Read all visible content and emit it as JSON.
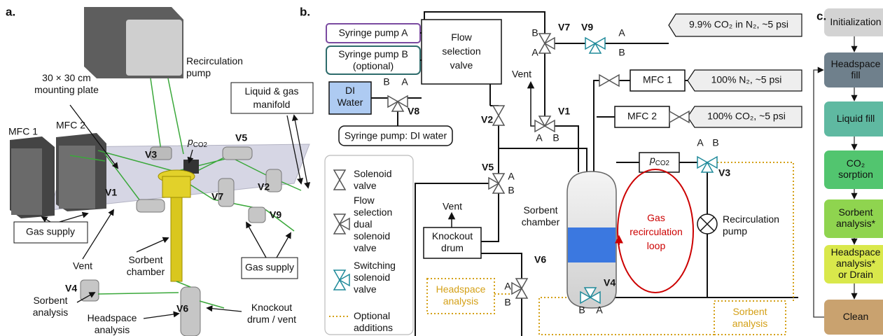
{
  "panel_a": {
    "label": "a.",
    "recirculation_pump": [
      "Recirculation",
      "pump"
    ],
    "mounting_plate": [
      "30 × 30 cm",
      "mounting plate"
    ],
    "manifold": [
      "Liquid & gas",
      "manifold"
    ],
    "mfc1": "MFC 1",
    "mfc2": "MFC 2",
    "pco2": {
      "main": "p",
      "sub": "CO2"
    },
    "valves": [
      "V3",
      "V5",
      "V1",
      "V7",
      "V2",
      "V9",
      "V4",
      "V6"
    ],
    "gas_supply_left": "Gas supply",
    "gas_supply_right": "Gas supply",
    "vent": "Vent",
    "sorbent_chamber": [
      "Sorbent",
      "chamber"
    ],
    "sorbent_analysis": [
      "Sorbent",
      "analysis"
    ],
    "headspace_analysis": [
      "Headspace",
      "analysis"
    ],
    "knockout": [
      "Knockout",
      "drum / vent"
    ]
  },
  "panel_b": {
    "label": "b.",
    "syringe_a": "Syringe pump A",
    "syringe_b": [
      "Syringe pump B",
      "(optional)"
    ],
    "flow_valve": [
      "Flow",
      "selection",
      "valve"
    ],
    "di_water": [
      "DI",
      "Water"
    ],
    "syringe_di": "Syringe pump: DI water",
    "valves": [
      {
        "name": "V8",
        "ports": [
          "B",
          "A"
        ]
      },
      {
        "name": "V7",
        "ports": [
          "B",
          "A"
        ]
      },
      {
        "name": "V9",
        "ports": [
          "A",
          "B"
        ]
      },
      {
        "name": "V1",
        "ports": [
          "A",
          "B"
        ]
      },
      {
        "name": "V2",
        "ports": []
      },
      {
        "name": "V5",
        "ports": [
          "A",
          "B"
        ]
      },
      {
        "name": "V6",
        "ports": [
          "A",
          "B"
        ]
      },
      {
        "name": "V4",
        "ports": [
          "B",
          "A"
        ]
      },
      {
        "name": "V3",
        "ports": [
          "A",
          "B"
        ]
      }
    ],
    "sources": [
      "9.9% CO₂ in N₂, ~5 psi",
      "100% N₂, ~5 psi",
      "100% CO₂, ~5 psi"
    ],
    "mfc1": "MFC 1",
    "mfc2": "MFC 2",
    "vent_top": "Vent",
    "vent_mid": "Vent",
    "pco2": {
      "main": "p",
      "sub": "CO2"
    },
    "sorbent_chamber": [
      "Sorbent",
      "chamber"
    ],
    "loop": [
      "Gas",
      "recirculation",
      "loop"
    ],
    "pump": [
      "Recirculation",
      "pump"
    ],
    "knockout": [
      "Knockout",
      "drum"
    ],
    "headspace_analysis": [
      "Headspace",
      "analysis"
    ],
    "sorbent_analysis": [
      "Sorbent",
      "analysis"
    ],
    "legend": [
      [
        "Solenoid",
        "valve"
      ],
      [
        "Flow",
        "selection",
        "dual",
        "solenoid",
        "valve"
      ],
      [
        "Switching",
        "solenoid",
        "valve"
      ],
      [
        "Optional",
        "additions"
      ]
    ]
  },
  "panel_c": {
    "label": "c.",
    "steps": [
      [
        "Initialization"
      ],
      [
        "Headspace",
        "fill"
      ],
      [
        "Liquid fill"
      ],
      [
        "CO₂",
        "sorption"
      ],
      [
        "Sorbent",
        "analysis*"
      ],
      [
        "Headspace",
        "analysis*",
        "or Drain"
      ],
      [
        "Clean"
      ]
    ]
  }
}
